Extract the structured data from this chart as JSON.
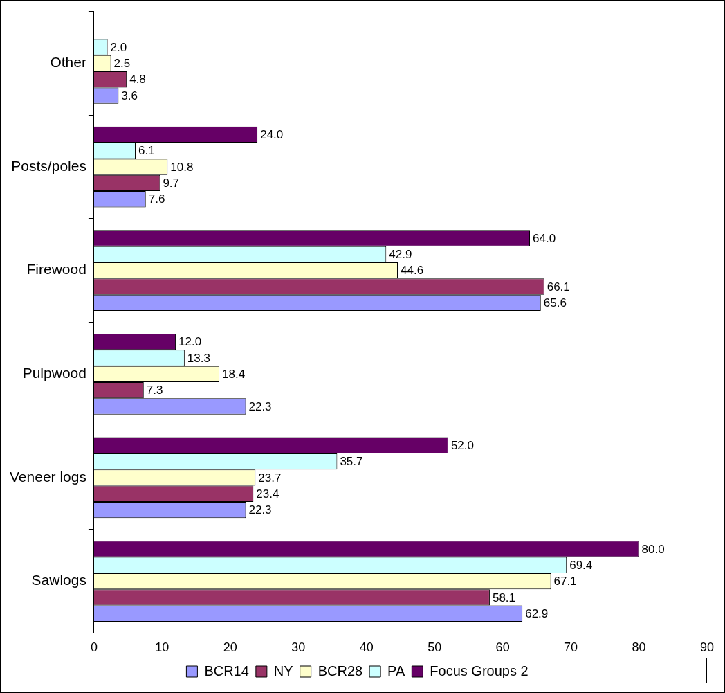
{
  "chart_data": {
    "type": "bar",
    "orientation": "horizontal",
    "categories": [
      "Other",
      "Posts/poles",
      "Firewood",
      "Pulpwood",
      "Veneer logs",
      "Sawlogs"
    ],
    "series": [
      {
        "name": "BCR14",
        "color": "#9999ff",
        "values": [
          3.6,
          7.6,
          65.6,
          22.3,
          22.3,
          62.9
        ],
        "value_labels": [
          "3.6",
          "7.6",
          "65.6",
          "22.3",
          "22.3",
          "62.9"
        ]
      },
      {
        "name": "NY",
        "color": "#993366",
        "values": [
          4.8,
          9.7,
          66.1,
          7.3,
          23.4,
          58.1
        ],
        "value_labels": [
          "4.8",
          "9.7",
          "66.1",
          "7.3",
          "23.4",
          "58.1"
        ]
      },
      {
        "name": "BCR28",
        "color": "#ffffcc",
        "values": [
          2.5,
          10.8,
          44.6,
          18.4,
          23.7,
          67.1
        ],
        "value_labels": [
          "2.5",
          "10.8",
          "44.6",
          "18.4",
          "23.7",
          "67.1"
        ]
      },
      {
        "name": "PA",
        "color": "#ccffff",
        "values": [
          2.0,
          6.1,
          42.9,
          13.3,
          35.7,
          69.4
        ],
        "value_labels": [
          "2.0",
          "6.1",
          "42.9",
          "13.3",
          "35.7",
          "69.4"
        ]
      },
      {
        "name": "Focus Groups 2",
        "color": "#660066",
        "values": [
          null,
          24.0,
          64.0,
          12.0,
          52.0,
          80.0
        ],
        "value_labels": [
          null,
          "24.0",
          "64.0",
          "12.0",
          "52.0",
          "80.0"
        ]
      }
    ],
    "xlim": [
      0,
      90
    ],
    "xticks": [
      0,
      10,
      20,
      30,
      40,
      50,
      60,
      70,
      80,
      90
    ],
    "grid": false,
    "legend": "bottom"
  }
}
